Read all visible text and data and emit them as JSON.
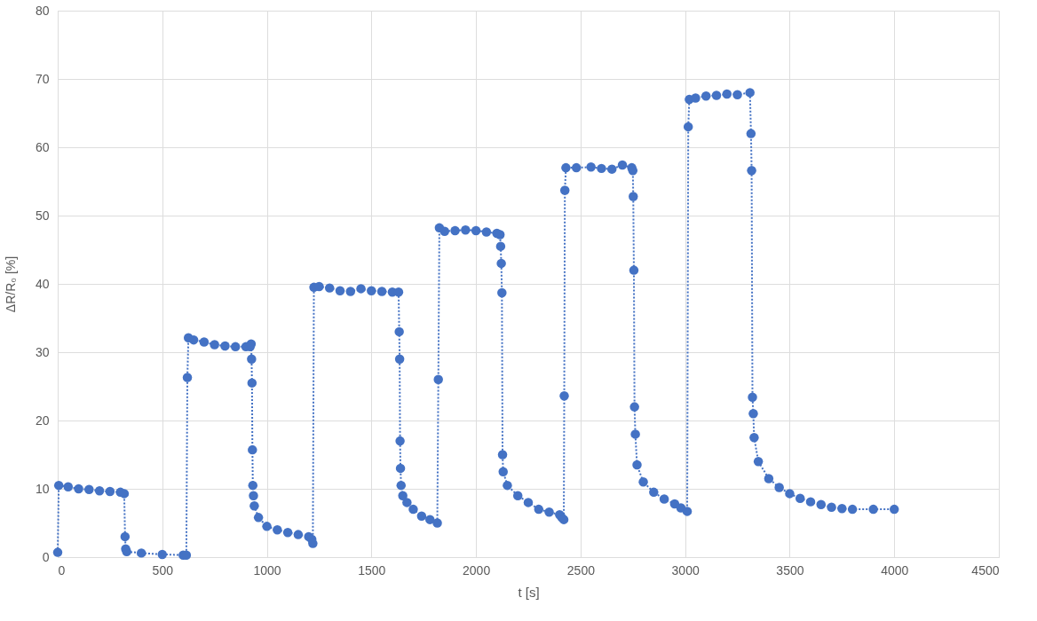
{
  "chart_data": {
    "type": "line",
    "xlabel": "t [s]",
    "ylabel": "ΔR/R₀ [%]",
    "x": [
      0,
      5,
      50,
      100,
      150,
      200,
      250,
      300,
      318,
      322,
      325,
      330,
      400,
      500,
      600,
      615,
      620,
      625,
      650,
      700,
      750,
      800,
      850,
      900,
      920,
      925,
      927,
      929,
      931,
      933,
      936,
      940,
      960,
      1000,
      1050,
      1100,
      1150,
      1200,
      1215,
      1220,
      1225,
      1250,
      1300,
      1350,
      1400,
      1450,
      1500,
      1550,
      1600,
      1630,
      1633,
      1635,
      1637,
      1639,
      1642,
      1650,
      1670,
      1700,
      1740,
      1780,
      1815,
      1820,
      1825,
      1850,
      1900,
      1950,
      2000,
      2050,
      2100,
      2115,
      2118,
      2121,
      2124,
      2127,
      2130,
      2150,
      2200,
      2250,
      2300,
      2350,
      2400,
      2410,
      2420,
      2422,
      2425,
      2430,
      2480,
      2550,
      2600,
      2650,
      2700,
      2745,
      2750,
      2752,
      2755,
      2758,
      2762,
      2770,
      2800,
      2850,
      2900,
      2950,
      2980,
      3010,
      3015,
      3020,
      3050,
      3100,
      3150,
      3200,
      3250,
      3310,
      3315,
      3318,
      3322,
      3326,
      3330,
      3350,
      3400,
      3450,
      3500,
      3550,
      3600,
      3650,
      3700,
      3750,
      3800,
      3900,
      4000
    ],
    "series": [
      {
        "color": "#4472c4",
        "values": [
          0.7,
          10.5,
          10.3,
          10,
          9.9,
          9.7,
          9.6,
          9.5,
          9.3,
          3,
          1.2,
          0.8,
          0.6,
          0.4,
          0.3,
          0.3,
          26.3,
          32.1,
          31.8,
          31.5,
          31.1,
          30.9,
          30.8,
          30.8,
          30.8,
          31.2,
          29,
          25.5,
          15.7,
          10.5,
          9,
          7.5,
          5.8,
          4.5,
          4,
          3.6,
          3.3,
          3,
          2.6,
          2,
          39.5,
          39.6,
          39.4,
          39,
          38.9,
          39.3,
          39,
          38.9,
          38.8,
          38.8,
          33,
          29,
          17,
          13,
          10.5,
          9,
          8,
          7,
          6,
          5.5,
          5,
          26,
          48.2,
          47.7,
          47.8,
          47.9,
          47.8,
          47.6,
          47.4,
          47.2,
          45.5,
          43,
          38.7,
          15,
          12.5,
          10.5,
          9,
          8,
          7,
          6.6,
          6.2,
          5.8,
          5.5,
          23.6,
          53.7,
          57,
          57,
          57.1,
          56.9,
          56.8,
          57.4,
          57,
          56.6,
          52.8,
          42,
          22,
          18,
          13.5,
          11,
          9.5,
          8.5,
          7.8,
          7.2,
          6.7,
          63,
          67,
          67.2,
          67.5,
          67.6,
          67.8,
          67.7,
          68,
          62,
          56.6,
          23.4,
          21,
          17.5,
          14,
          11.5,
          10.2,
          9.3,
          8.6,
          8.1,
          7.7,
          7.3,
          7.1,
          7,
          7,
          7
        ]
      }
    ],
    "xlim": [
      0,
      4500
    ],
    "xticks": [
      0,
      500,
      1000,
      1500,
      2000,
      2500,
      3000,
      3500,
      4000,
      4500
    ],
    "ylim": [
      0,
      80
    ],
    "yticks": [
      0,
      10,
      20,
      30,
      40,
      50,
      60,
      70,
      80
    ],
    "grid": true,
    "marker": "circle",
    "line_style": "dotted"
  }
}
